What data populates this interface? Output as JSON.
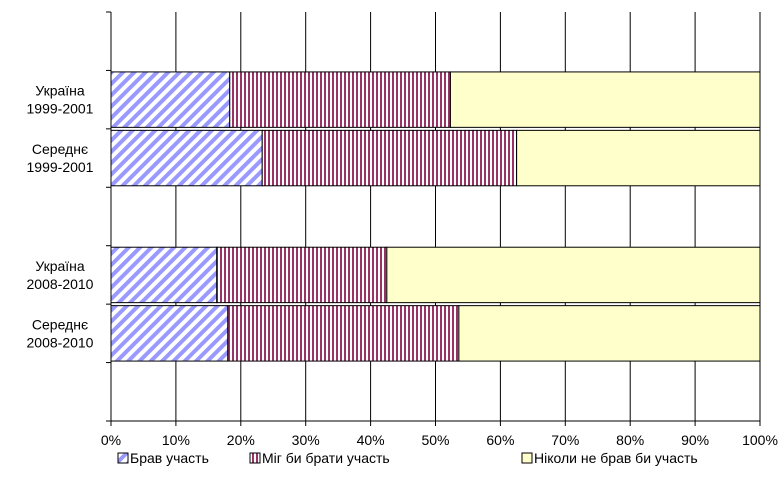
{
  "chart_data": {
    "type": "bar",
    "orientation": "horizontal",
    "stacked": "percent",
    "categories": [
      "Україна\n1999-2001",
      "Середнє\n1999-2001",
      "Україна\n2008-2010",
      "Середнє\n2008-2010"
    ],
    "series": [
      {
        "name": "Брав участь",
        "values": [
          18.3,
          23.3,
          16.3,
          18.0
        ],
        "color": "#9999ff",
        "pattern": "diagonal-stripes"
      },
      {
        "name": "Міг би брати участь",
        "values": [
          34.0,
          39.2,
          26.2,
          35.6
        ],
        "color": "#993366",
        "pattern": "vertical-stripes"
      },
      {
        "name": "Ніколи не брав би участь",
        "values": [
          47.7,
          37.5,
          57.5,
          46.4
        ],
        "color": "#ffffcc",
        "pattern": "solid"
      }
    ],
    "xlim": [
      0,
      100
    ],
    "xticks": [
      "0%",
      "10%",
      "20%",
      "30%",
      "40%",
      "50%",
      "60%",
      "70%",
      "80%",
      "90%",
      "100%"
    ],
    "grid": true,
    "legend_position": "bottom"
  }
}
